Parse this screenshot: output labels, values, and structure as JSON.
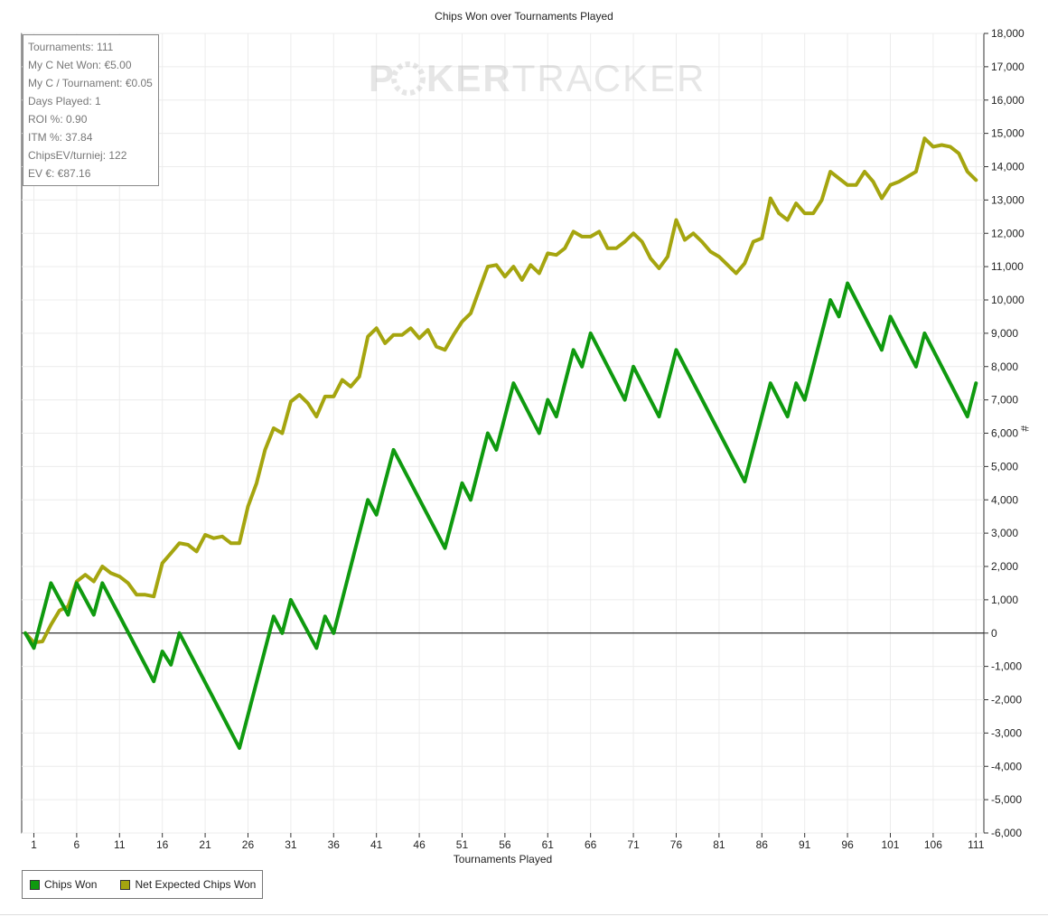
{
  "chart_data": {
    "type": "line",
    "title": "Chips Won over Tournaments Played",
    "xlabel": "Tournaments Played",
    "ylabel": "#",
    "xlim": [
      0,
      111
    ],
    "ylim": [
      -6000,
      18000
    ],
    "x_ticks": [
      1,
      6,
      11,
      16,
      21,
      26,
      31,
      36,
      41,
      46,
      51,
      56,
      61,
      66,
      71,
      76,
      81,
      86,
      91,
      96,
      101,
      106,
      111
    ],
    "y_ticks": [
      {
        "value": 18000,
        "label": "18,000"
      },
      {
        "value": 17000,
        "label": "17,000"
      },
      {
        "value": 16000,
        "label": "16,000"
      },
      {
        "value": 15000,
        "label": "15,000"
      },
      {
        "value": 14000,
        "label": "14,000"
      },
      {
        "value": 13000,
        "label": "13,000"
      },
      {
        "value": 12000,
        "label": "12,000"
      },
      {
        "value": 11000,
        "label": "11,000"
      },
      {
        "value": 10000,
        "label": "10,000"
      },
      {
        "value": 9000,
        "label": "9,000"
      },
      {
        "value": 8000,
        "label": "8,000"
      },
      {
        "value": 7000,
        "label": "7,000"
      },
      {
        "value": 6000,
        "label": "6,000"
      },
      {
        "value": 5000,
        "label": "5,000"
      },
      {
        "value": 4000,
        "label": "4,000"
      },
      {
        "value": 3000,
        "label": "3,000"
      },
      {
        "value": 2000,
        "label": "2,000"
      },
      {
        "value": 1000,
        "label": "1,000"
      },
      {
        "value": 0,
        "label": "0"
      },
      {
        "value": -1000,
        "label": "-1,000"
      },
      {
        "value": -2000,
        "label": "-2,000"
      },
      {
        "value": -3000,
        "label": "-3,000"
      },
      {
        "value": -4000,
        "label": "-4,000"
      },
      {
        "value": -5000,
        "label": "-5,000"
      },
      {
        "value": -6000,
        "label": "-6,000"
      }
    ],
    "grid": true,
    "legend_position": "bottom-left",
    "series": [
      {
        "name": "Chips Won",
        "color": "#0f9a0f",
        "points": [
          [
            0,
            0
          ],
          [
            1,
            -450
          ],
          [
            3,
            1500
          ],
          [
            5,
            550
          ],
          [
            6,
            1500
          ],
          [
            8,
            550
          ],
          [
            9,
            1500
          ],
          [
            15,
            -1450
          ],
          [
            16,
            -550
          ],
          [
            17,
            -950
          ],
          [
            18,
            0
          ],
          [
            25,
            -3450
          ],
          [
            29,
            500
          ],
          [
            30,
            0
          ],
          [
            31,
            1000
          ],
          [
            34,
            -450
          ],
          [
            35,
            500
          ],
          [
            36,
            0
          ],
          [
            40,
            4000
          ],
          [
            41,
            3550
          ],
          [
            43,
            5500
          ],
          [
            49,
            2550
          ],
          [
            51,
            4500
          ],
          [
            52,
            4000
          ],
          [
            54,
            6000
          ],
          [
            55,
            5500
          ],
          [
            57,
            7500
          ],
          [
            60,
            6000
          ],
          [
            61,
            7000
          ],
          [
            62,
            6500
          ],
          [
            64,
            8500
          ],
          [
            65,
            8000
          ],
          [
            66,
            9000
          ],
          [
            70,
            7000
          ],
          [
            71,
            8000
          ],
          [
            74,
            6500
          ],
          [
            76,
            8500
          ],
          [
            84,
            4550
          ],
          [
            87,
            7500
          ],
          [
            89,
            6500
          ],
          [
            90,
            7500
          ],
          [
            91,
            7000
          ],
          [
            94,
            10000
          ],
          [
            95,
            9500
          ],
          [
            96,
            10500
          ],
          [
            100,
            8500
          ],
          [
            101,
            9500
          ],
          [
            104,
            8000
          ],
          [
            105,
            9000
          ],
          [
            110,
            6500
          ],
          [
            111,
            7500
          ]
        ]
      },
      {
        "name": "Net Expected Chips Won",
        "color": "#a5a50f",
        "points": [
          [
            0,
            0
          ],
          [
            1,
            -280
          ],
          [
            2,
            -250
          ],
          [
            3,
            250
          ],
          [
            4,
            680
          ],
          [
            5,
            800
          ],
          [
            6,
            1550
          ],
          [
            7,
            1750
          ],
          [
            8,
            1550
          ],
          [
            9,
            2000
          ],
          [
            10,
            1800
          ],
          [
            11,
            1700
          ],
          [
            12,
            1500
          ],
          [
            13,
            1150
          ],
          [
            14,
            1150
          ],
          [
            15,
            1100
          ],
          [
            16,
            2100
          ],
          [
            17,
            2400
          ],
          [
            18,
            2700
          ],
          [
            19,
            2650
          ],
          [
            20,
            2450
          ],
          [
            21,
            2950
          ],
          [
            22,
            2850
          ],
          [
            23,
            2900
          ],
          [
            24,
            2700
          ],
          [
            25,
            2700
          ],
          [
            26,
            3800
          ],
          [
            27,
            4500
          ],
          [
            28,
            5500
          ],
          [
            29,
            6150
          ],
          [
            30,
            6000
          ],
          [
            31,
            6950
          ],
          [
            32,
            7150
          ],
          [
            33,
            6900
          ],
          [
            34,
            6500
          ],
          [
            35,
            7100
          ],
          [
            36,
            7100
          ],
          [
            37,
            7600
          ],
          [
            38,
            7400
          ],
          [
            39,
            7700
          ],
          [
            40,
            8900
          ],
          [
            41,
            9150
          ],
          [
            42,
            8700
          ],
          [
            43,
            8950
          ],
          [
            44,
            8950
          ],
          [
            45,
            9150
          ],
          [
            46,
            8850
          ],
          [
            47,
            9100
          ],
          [
            48,
            8600
          ],
          [
            49,
            8500
          ],
          [
            50,
            8950
          ],
          [
            51,
            9350
          ],
          [
            52,
            9600
          ],
          [
            53,
            10300
          ],
          [
            54,
            11000
          ],
          [
            55,
            11050
          ],
          [
            56,
            10700
          ],
          [
            57,
            11000
          ],
          [
            58,
            10600
          ],
          [
            59,
            11050
          ],
          [
            60,
            10800
          ],
          [
            61,
            11400
          ],
          [
            62,
            11350
          ],
          [
            63,
            11550
          ],
          [
            64,
            12050
          ],
          [
            65,
            11900
          ],
          [
            66,
            11900
          ],
          [
            67,
            12050
          ],
          [
            68,
            11550
          ],
          [
            69,
            11550
          ],
          [
            70,
            11750
          ],
          [
            71,
            12000
          ],
          [
            72,
            11750
          ],
          [
            73,
            11250
          ],
          [
            74,
            10950
          ],
          [
            75,
            11300
          ],
          [
            76,
            12400
          ],
          [
            77,
            11800
          ],
          [
            78,
            12000
          ],
          [
            79,
            11750
          ],
          [
            80,
            11450
          ],
          [
            81,
            11300
          ],
          [
            82,
            11050
          ],
          [
            83,
            10800
          ],
          [
            84,
            11100
          ],
          [
            85,
            11750
          ],
          [
            86,
            11850
          ],
          [
            87,
            13050
          ],
          [
            88,
            12600
          ],
          [
            89,
            12400
          ],
          [
            90,
            12900
          ],
          [
            91,
            12600
          ],
          [
            92,
            12600
          ],
          [
            93,
            13000
          ],
          [
            94,
            13850
          ],
          [
            95,
            13650
          ],
          [
            96,
            13450
          ],
          [
            97,
            13450
          ],
          [
            98,
            13850
          ],
          [
            99,
            13550
          ],
          [
            100,
            13050
          ],
          [
            101,
            13450
          ],
          [
            102,
            13550
          ],
          [
            103,
            13700
          ],
          [
            104,
            13850
          ],
          [
            105,
            14850
          ],
          [
            106,
            14600
          ],
          [
            107,
            14650
          ],
          [
            108,
            14600
          ],
          [
            109,
            14400
          ],
          [
            110,
            13850
          ],
          [
            111,
            13600
          ]
        ]
      }
    ]
  },
  "stats": [
    "Tournaments: 111",
    "My C Net Won: €5.00",
    "My C / Tournament: €0.05",
    "Days Played: 1",
    "ROI %: 0.90",
    "ITM %: 37.84",
    "ChipsEV/turniej: 122",
    "EV €: €87.16"
  ],
  "watermark": {
    "part1": "P",
    "part2": "KER",
    "part3": "TRACKER"
  },
  "legend": {
    "items": [
      {
        "label": "Chips Won",
        "color": "#0f9a0f"
      },
      {
        "label": "Net Expected Chips Won",
        "color": "#a5a50f"
      }
    ]
  }
}
